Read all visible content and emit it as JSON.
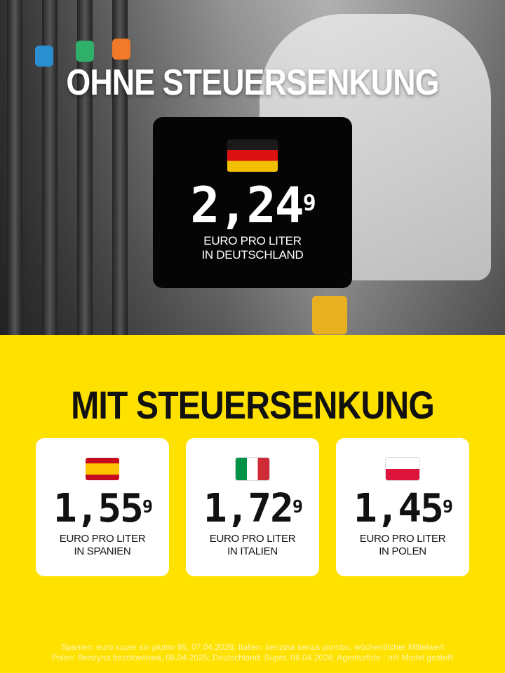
{
  "top": {
    "title": "OHNE STEUERSENKUNG",
    "germany": {
      "flag": "flag-germany-icon",
      "price_main": "2,24",
      "price_sup": "9",
      "label_line1": "EURO PRO LITER",
      "label_line2": "IN DEUTSCHLAND"
    }
  },
  "bottom": {
    "title": "MIT STEUERSENKUNG",
    "cards": [
      {
        "flag": "flag-spain-icon",
        "price_main": "1,55",
        "price_sup": "9",
        "label_line1": "EURO PRO LITER",
        "label_line2": "IN SPANIEN"
      },
      {
        "flag": "flag-italy-icon",
        "price_main": "1,72",
        "price_sup": "9",
        "label_line1": "EURO PRO LITER",
        "label_line2": "IN ITALIEN"
      },
      {
        "flag": "flag-poland-icon",
        "price_main": "1,45",
        "price_sup": "9",
        "label_line1": "EURO PRO LITER",
        "label_line2": "IN POLEN"
      }
    ]
  },
  "footer": {
    "line1": "Spanien: euro super sin plomo 95, 07.04.2026; Italien: benzina senza piombo, wöchentlicher Mittelwert",
    "line2": "Polen: Benzyna bezolowiowa, 08.04.2025; Deutschland: Super, 08.04.2026; Agenturfoto - mit Model gestellt"
  },
  "colors": {
    "background_yellow": "#ffe100",
    "card_black": "#050505",
    "card_white": "#ffffff"
  }
}
